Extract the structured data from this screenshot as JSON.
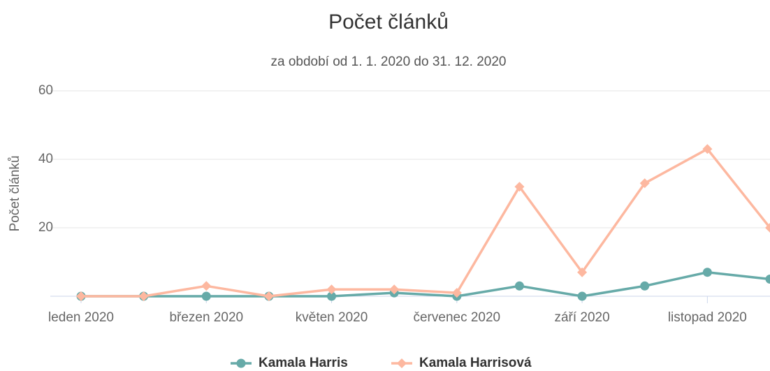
{
  "chart_data": {
    "type": "line",
    "title": "Počet článků",
    "subtitle": "za období od 1. 1. 2020 do 31. 12. 2020",
    "y_label": "Počet článků",
    "categories": [
      "leden 2020",
      null,
      "březen 2020",
      null,
      "květen 2020",
      null,
      "červenec 2020",
      null,
      "září 2020",
      null,
      "listopad 2020",
      null
    ],
    "series": [
      {
        "name": "Kamala Harris",
        "color": "#66aaa8",
        "values": [
          0,
          0,
          0,
          0,
          0,
          1,
          0,
          3,
          0,
          3,
          7,
          5
        ]
      },
      {
        "name": "Kamala Harrisová",
        "color": "#fdb8a0",
        "values": [
          0,
          0,
          3,
          0,
          2,
          2,
          1,
          32,
          7,
          33,
          43,
          20
        ]
      }
    ],
    "ylim": [
      0,
      60
    ],
    "yticks": [
      20,
      40,
      60
    ],
    "grid": true
  }
}
